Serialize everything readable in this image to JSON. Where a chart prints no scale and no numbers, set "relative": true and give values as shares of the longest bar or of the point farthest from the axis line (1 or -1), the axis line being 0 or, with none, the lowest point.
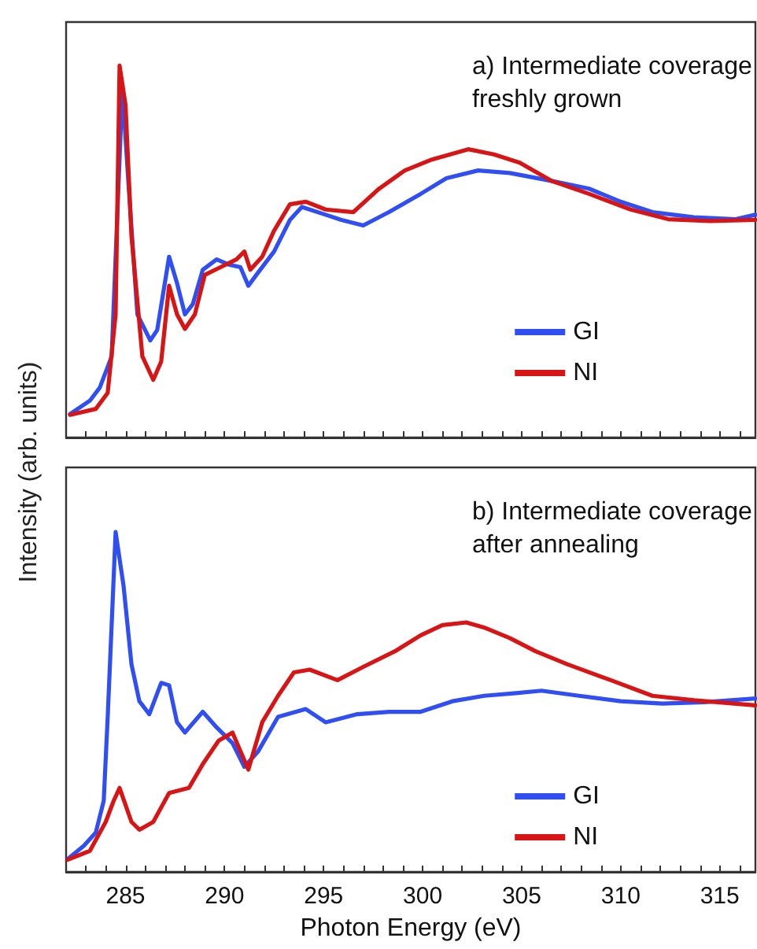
{
  "chart_data": [
    {
      "type": "line",
      "title": "a) Intermediate coverage\nfreshly grown",
      "ylabel": "Intensity (arb. units)",
      "relative": true,
      "xlim": [
        282,
        316.8
      ],
      "xticks": [
        {
          "value": 283,
          "label": null
        },
        {
          "value": 284,
          "label": null
        },
        {
          "value": 285,
          "label": null
        },
        {
          "value": 286,
          "label": null
        },
        {
          "value": 287,
          "label": null
        },
        {
          "value": 288,
          "label": null
        },
        {
          "value": 289,
          "label": null
        },
        {
          "value": 290,
          "label": null
        },
        {
          "value": 291,
          "label": null
        },
        {
          "value": 292,
          "label": null
        },
        {
          "value": 293,
          "label": null
        },
        {
          "value": 294,
          "label": null
        },
        {
          "value": 295,
          "label": null
        },
        {
          "value": 296,
          "label": null
        },
        {
          "value": 297,
          "label": null
        },
        {
          "value": 298,
          "label": null
        },
        {
          "value": 299,
          "label": null
        },
        {
          "value": 300,
          "label": null
        },
        {
          "value": 301,
          "label": null
        },
        {
          "value": 302,
          "label": null
        },
        {
          "value": 303,
          "label": null
        },
        {
          "value": 304,
          "label": null
        },
        {
          "value": 305,
          "label": null
        },
        {
          "value": 306,
          "label": null
        },
        {
          "value": 307,
          "label": null
        },
        {
          "value": 308,
          "label": null
        },
        {
          "value": 309,
          "label": null
        },
        {
          "value": 310,
          "label": null
        },
        {
          "value": 311,
          "label": null
        },
        {
          "value": 312,
          "label": null
        },
        {
          "value": 313,
          "label": null
        },
        {
          "value": 314,
          "label": null
        },
        {
          "value": 315,
          "label": null
        },
        {
          "value": 316,
          "label": null
        }
      ],
      "tick_labels": false,
      "grid": false,
      "legend": "bottom right",
      "marker": "none",
      "line_style": "solid",
      "series": [
        {
          "name": "GI",
          "color": "#2f4ff5",
          "x": [
            282.2,
            283.2,
            283.7,
            284.3,
            284.84,
            285.2,
            285.6,
            286.25,
            286.6,
            287.2,
            287.6,
            288.0,
            288.4,
            288.9,
            289.6,
            290.2,
            290.8,
            291.2,
            291.7,
            292.5,
            293.3,
            293.9,
            295.1,
            295.9,
            297.0,
            298.3,
            299.9,
            301.2,
            302.8,
            304.4,
            306.5,
            308.4,
            310.0,
            311.6,
            313.7,
            315.8,
            316.8
          ],
          "values": [
            0.063,
            0.099,
            0.134,
            0.218,
            0.937,
            0.641,
            0.331,
            0.261,
            0.289,
            0.486,
            0.415,
            0.331,
            0.359,
            0.451,
            0.479,
            0.465,
            0.458,
            0.408,
            0.444,
            0.5,
            0.585,
            0.62,
            0.599,
            0.585,
            0.57,
            0.606,
            0.655,
            0.697,
            0.718,
            0.711,
            0.69,
            0.669,
            0.634,
            0.606,
            0.592,
            0.587,
            0.599
          ]
        },
        {
          "name": "NI",
          "color": "#d81414",
          "x": [
            282.2,
            283.5,
            284.1,
            284.5,
            284.7,
            285.0,
            285.3,
            285.85,
            286.4,
            286.8,
            287.2,
            287.6,
            288.0,
            288.5,
            289.0,
            289.8,
            290.6,
            291.0,
            291.3,
            291.9,
            292.5,
            293.3,
            294.1,
            295.1,
            296.5,
            297.8,
            299.1,
            300.4,
            302.3,
            303.6,
            304.9,
            306.5,
            308.4,
            310.5,
            312.4,
            314.5,
            316.8
          ],
          "values": [
            0.061,
            0.077,
            0.12,
            0.331,
            1,
            0.894,
            0.542,
            0.218,
            0.155,
            0.204,
            0.408,
            0.331,
            0.292,
            0.331,
            0.437,
            0.458,
            0.479,
            0.5,
            0.451,
            0.486,
            0.556,
            0.627,
            0.634,
            0.613,
            0.606,
            0.669,
            0.718,
            0.746,
            0.775,
            0.761,
            0.739,
            0.69,
            0.655,
            0.613,
            0.587,
            0.582,
            0.585
          ]
        }
      ]
    },
    {
      "type": "line",
      "title": "b) Intermediate coverage\nafter annealing",
      "xlabel": "Photon Energy (eV)",
      "relative": true,
      "xlim": [
        282,
        316.8
      ],
      "xticks": [
        {
          "value": 283,
          "label": null
        },
        {
          "value": 284,
          "label": null
        },
        285,
        {
          "value": 286,
          "label": null
        },
        {
          "value": 287,
          "label": null
        },
        {
          "value": 288,
          "label": null
        },
        {
          "value": 289,
          "label": null
        },
        290,
        {
          "value": 291,
          "label": null
        },
        {
          "value": 292,
          "label": null
        },
        {
          "value": 293,
          "label": null
        },
        {
          "value": 294,
          "label": null
        },
        295,
        {
          "value": 296,
          "label": null
        },
        {
          "value": 297,
          "label": null
        },
        {
          "value": 298,
          "label": null
        },
        {
          "value": 299,
          "label": null
        },
        300,
        {
          "value": 301,
          "label": null
        },
        {
          "value": 302,
          "label": null
        },
        {
          "value": 303,
          "label": null
        },
        {
          "value": 304,
          "label": null
        },
        305,
        {
          "value": 306,
          "label": null
        },
        {
          "value": 307,
          "label": null
        },
        {
          "value": 308,
          "label": null
        },
        {
          "value": 309,
          "label": null
        },
        310,
        {
          "value": 311,
          "label": null
        },
        {
          "value": 312,
          "label": null
        },
        {
          "value": 313,
          "label": null
        },
        {
          "value": 314,
          "label": null
        },
        315,
        {
          "value": 316,
          "label": null
        }
      ],
      "tick_labels": "x",
      "grid": false,
      "legend": "bottom right",
      "marker": "none",
      "line_style": "solid",
      "series": [
        {
          "name": "GI",
          "color": "#2f4ff5",
          "x": [
            282.1,
            282.9,
            283.5,
            283.9,
            284.1,
            284.5,
            284.9,
            285.3,
            285.7,
            286.2,
            286.8,
            287.2,
            287.6,
            288.0,
            288.9,
            289.6,
            290.4,
            291.0,
            291.7,
            292.7,
            294.1,
            295.1,
            296.7,
            298.3,
            299.9,
            301.5,
            303.1,
            304.7,
            306.0,
            307.9,
            310.0,
            312.1,
            314.2,
            316.8
          ],
          "values": [
            0.039,
            0.077,
            0.116,
            0.209,
            0.456,
            1,
            0.842,
            0.611,
            0.502,
            0.464,
            0.556,
            0.549,
            0.44,
            0.41,
            0.471,
            0.425,
            0.379,
            0.309,
            0.355,
            0.456,
            0.479,
            0.44,
            0.464,
            0.471,
            0.471,
            0.502,
            0.518,
            0.526,
            0.533,
            0.518,
            0.502,
            0.495,
            0.499,
            0.51
          ]
        },
        {
          "name": "NI",
          "color": "#d81414",
          "x": [
            282.1,
            283.2,
            284.0,
            284.4,
            284.7,
            285.3,
            285.7,
            286.4,
            287.2,
            288.2,
            288.9,
            289.7,
            290.4,
            291.2,
            291.9,
            292.7,
            293.5,
            294.3,
            295.7,
            297.0,
            298.6,
            299.9,
            301.0,
            302.2,
            303.1,
            304.4,
            305.7,
            307.3,
            309.5,
            311.6,
            313.7,
            316.8
          ],
          "values": [
            0.036,
            0.062,
            0.147,
            0.209,
            0.247,
            0.147,
            0.124,
            0.147,
            0.232,
            0.247,
            0.317,
            0.386,
            0.41,
            0.301,
            0.44,
            0.518,
            0.587,
            0.595,
            0.564,
            0.603,
            0.649,
            0.696,
            0.726,
            0.734,
            0.719,
            0.688,
            0.649,
            0.611,
            0.564,
            0.518,
            0.505,
            0.49
          ]
        }
      ]
    }
  ]
}
